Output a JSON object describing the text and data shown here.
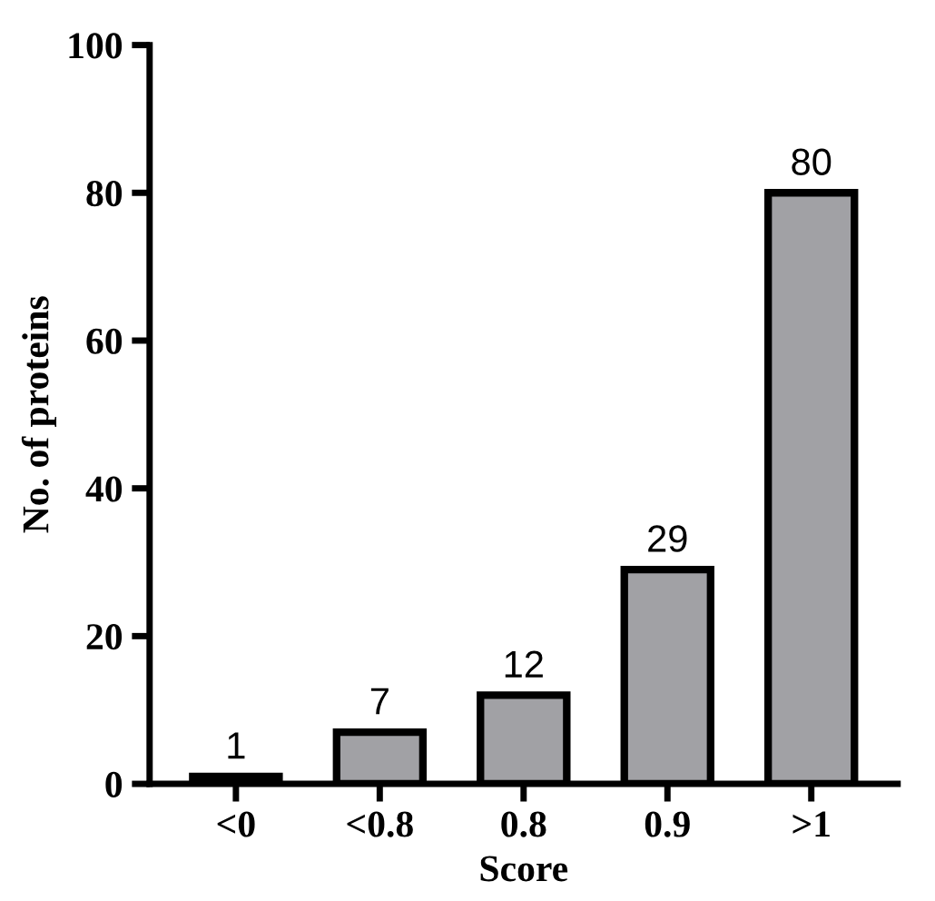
{
  "chart_data": {
    "type": "bar",
    "xlabel": "Score",
    "ylabel": "No. of proteins",
    "categories": [
      "<0",
      "<0.8",
      "0.8",
      "0.9",
      ">1"
    ],
    "values": [
      1,
      7,
      12,
      29,
      80
    ],
    "color": "#a1a1a5",
    "ylim": [
      0,
      100
    ],
    "yticks": [
      0,
      20,
      40,
      60,
      80,
      100
    ],
    "grid": false,
    "data_labels": true
  }
}
